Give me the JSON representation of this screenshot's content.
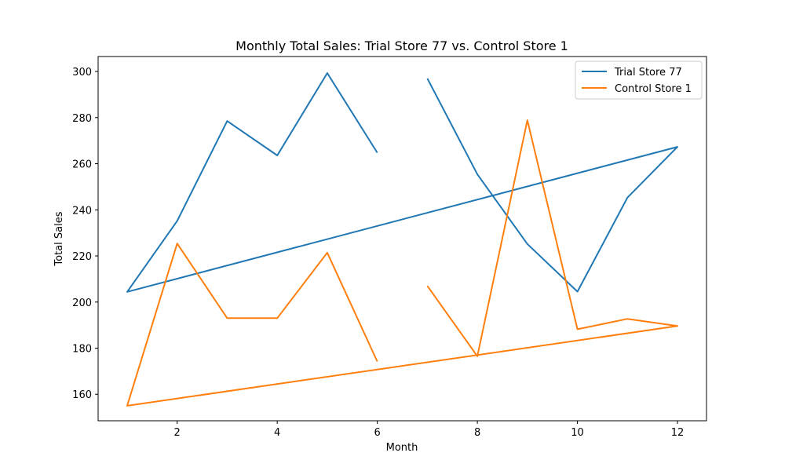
{
  "chart_data": {
    "type": "line",
    "title": "Monthly Total Sales: Trial Store 77 vs. Control Store 1",
    "xlabel": "Month",
    "ylabel": "Total Sales",
    "xlim": [
      0.42,
      12.58
    ],
    "ylim": [
      148.5,
      306.5
    ],
    "xticks": [
      2,
      4,
      6,
      8,
      10,
      12
    ],
    "yticks": [
      160,
      180,
      200,
      220,
      240,
      260,
      280,
      300
    ],
    "grid": false,
    "legend_position": "top-right",
    "series": [
      {
        "name": "Trial Store 77",
        "color": "#1f77b4",
        "segments": [
          {
            "x": [
              6,
              5,
              4,
              3,
              2,
              1,
              12,
              11,
              10,
              9,
              8,
              7
            ],
            "y": [
              264.8,
              299.3,
              263.6,
              278.5,
              235.2,
              204.4,
              267.3,
              245.3,
              204.5,
              225.2,
              255.4,
              297.0
            ]
          }
        ]
      },
      {
        "name": "Control Store 1",
        "color": "#ff7f0e",
        "segments": [
          {
            "x": [
              6,
              5,
              4,
              3,
              2,
              1,
              12,
              11,
              10,
              9,
              8,
              7
            ],
            "y": [
              174.2,
              221.4,
              193.0,
              193.0,
              225.4,
              155.0,
              189.6,
              192.7,
              188.2,
              278.9,
              176.5,
              207.0
            ]
          }
        ]
      }
    ]
  }
}
